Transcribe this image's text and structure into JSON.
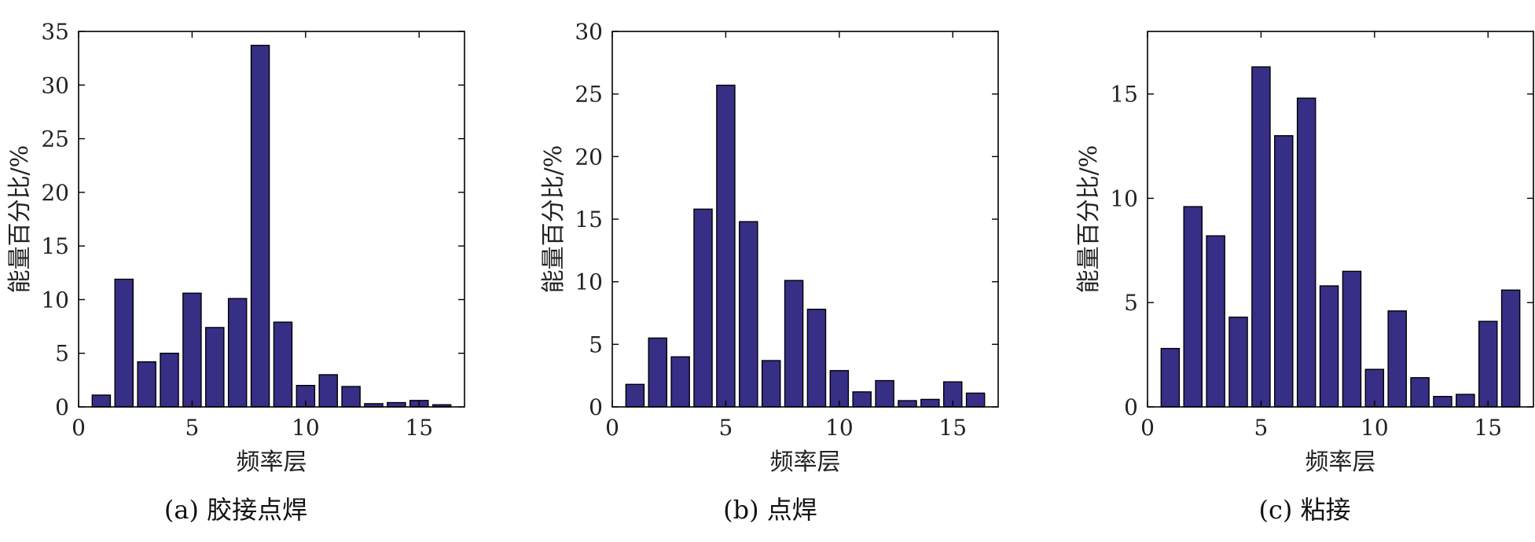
{
  "chart_data": [
    {
      "type": "bar",
      "caption": "(a)  胶接点焊",
      "xlabel": "频率层",
      "ylabel": "能量百分比/%",
      "x": [
        1,
        2,
        3,
        4,
        5,
        6,
        7,
        8,
        9,
        10,
        11,
        12,
        13,
        14,
        15,
        16
      ],
      "values": [
        1.1,
        11.9,
        4.2,
        5.0,
        10.6,
        7.4,
        10.1,
        33.7,
        7.9,
        2.0,
        3.0,
        1.9,
        0.3,
        0.4,
        0.6,
        0.2
      ],
      "xlim": [
        0,
        17
      ],
      "ylim": [
        0,
        35
      ],
      "xticks": [
        0,
        5,
        10,
        15
      ],
      "yticks": [
        0,
        5,
        10,
        15,
        20,
        25,
        30,
        35
      ],
      "grid": false,
      "color": "#372e86"
    },
    {
      "type": "bar",
      "caption": "(b)  点焊",
      "xlabel": "频率层",
      "ylabel": "能量百分比/%",
      "x": [
        1,
        2,
        3,
        4,
        5,
        6,
        7,
        8,
        9,
        10,
        11,
        12,
        13,
        14,
        15,
        16
      ],
      "values": [
        1.8,
        5.5,
        4.0,
        15.8,
        25.7,
        14.8,
        3.7,
        10.1,
        7.8,
        2.9,
        1.2,
        2.1,
        0.5,
        0.6,
        2.0,
        1.1
      ],
      "xlim": [
        0,
        17
      ],
      "ylim": [
        0,
        30
      ],
      "xticks": [
        0,
        5,
        10,
        15
      ],
      "yticks": [
        0,
        5,
        10,
        15,
        20,
        25,
        30
      ],
      "grid": false,
      "color": "#372e86"
    },
    {
      "type": "bar",
      "caption": "(c)  粘接",
      "xlabel": "频率层",
      "ylabel": "能量百分比/%",
      "x": [
        1,
        2,
        3,
        4,
        5,
        6,
        7,
        8,
        9,
        10,
        11,
        12,
        13,
        14,
        15,
        16
      ],
      "values": [
        2.8,
        9.6,
        8.2,
        4.3,
        16.3,
        13.0,
        14.8,
        5.8,
        6.5,
        1.8,
        4.6,
        1.4,
        0.5,
        0.6,
        4.1,
        5.6
      ],
      "xlim": [
        0,
        17
      ],
      "ylim": [
        0,
        18
      ],
      "xticks": [
        0,
        5,
        10,
        15
      ],
      "yticks": [
        0,
        5,
        10,
        15
      ],
      "grid": false,
      "color": "#372e86"
    }
  ]
}
